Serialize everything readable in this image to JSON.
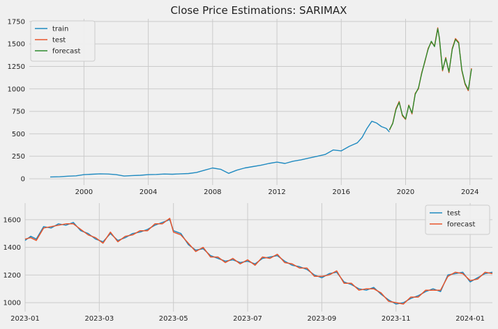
{
  "chart_data": [
    {
      "type": "line",
      "title": "Close Price Estimations: SARIMAX",
      "xlabel": "",
      "ylabel": "",
      "xlim": [
        1996.6,
        2025.4
      ],
      "ylim": [
        -70,
        1780
      ],
      "x_ticks": [
        2000,
        2004,
        2008,
        2012,
        2016,
        2020,
        2024
      ],
      "x_tick_labels": [
        "2000",
        "2004",
        "2008",
        "2012",
        "2016",
        "2020",
        "2024"
      ],
      "y_ticks": [
        0,
        250,
        500,
        750,
        1000,
        1250,
        1500,
        1750
      ],
      "y_tick_labels": [
        "0",
        "250",
        "500",
        "750",
        "1000",
        "1250",
        "1500",
        "1750"
      ],
      "grid": true,
      "legend": "top-left",
      "series": [
        {
          "name": "train",
          "color": "#1f8ac0",
          "x": [
            1997.9,
            1998.5,
            1999.0,
            1999.5,
            2000.0,
            2000.5,
            2001.0,
            2001.5,
            2002.0,
            2002.5,
            2003.0,
            2003.5,
            2004.0,
            2004.5,
            2005.0,
            2005.5,
            2006.0,
            2006.5,
            2007.0,
            2007.5,
            2008.0,
            2008.5,
            2009.0,
            2009.5,
            2010.0,
            2010.5,
            2011.0,
            2011.5,
            2012.0,
            2012.5,
            2013.0,
            2013.5,
            2014.0,
            2014.5,
            2015.0,
            2015.5,
            2016.0,
            2016.5,
            2017.0,
            2017.3,
            2017.6,
            2017.9,
            2018.2,
            2018.5,
            2018.8,
            2019.0
          ],
          "y": [
            20,
            22,
            28,
            32,
            45,
            50,
            55,
            52,
            45,
            30,
            35,
            38,
            45,
            48,
            52,
            50,
            55,
            58,
            70,
            95,
            120,
            105,
            60,
            95,
            120,
            135,
            150,
            170,
            185,
            170,
            195,
            210,
            230,
            250,
            270,
            320,
            310,
            360,
            400,
            460,
            560,
            640,
            620,
            580,
            560,
            520
          ]
        },
        {
          "name": "test",
          "color": "#e8552c",
          "x": [
            2019.0,
            2019.2,
            2019.4,
            2019.6,
            2019.8,
            2020.0,
            2020.2,
            2020.4,
            2020.6,
            2020.8,
            2021.0,
            2021.2,
            2021.4,
            2021.6,
            2021.8,
            2022.0,
            2022.1,
            2022.3,
            2022.5,
            2022.7,
            2022.9,
            2023.1,
            2023.3,
            2023.5,
            2023.7,
            2023.9,
            2024.1
          ],
          "y": [
            540,
            620,
            780,
            860,
            700,
            660,
            820,
            720,
            950,
            1000,
            1180,
            1300,
            1450,
            1520,
            1480,
            1680,
            1560,
            1200,
            1350,
            1180,
            1450,
            1560,
            1520,
            1200,
            1050,
            980,
            1230
          ]
        },
        {
          "name": "forecast",
          "color": "#2e8b2e",
          "x": [
            2019.0,
            2019.2,
            2019.4,
            2019.6,
            2019.8,
            2020.0,
            2020.2,
            2020.4,
            2020.6,
            2020.8,
            2021.0,
            2021.2,
            2021.4,
            2021.6,
            2021.8,
            2022.0,
            2022.1,
            2022.3,
            2022.5,
            2022.7,
            2022.9,
            2023.1,
            2023.3,
            2023.5,
            2023.7,
            2023.9,
            2024.1
          ],
          "y": [
            545,
            615,
            770,
            850,
            710,
            665,
            815,
            730,
            940,
            1010,
            1170,
            1310,
            1440,
            1530,
            1470,
            1670,
            1570,
            1210,
            1340,
            1190,
            1440,
            1550,
            1510,
            1210,
            1060,
            990,
            1220
          ]
        }
      ]
    },
    {
      "type": "line",
      "title": "",
      "xlabel": "",
      "ylabel": "",
      "xlim": [
        0,
        12.6
      ],
      "ylim": [
        935,
        1720
      ],
      "x_ticks": [
        0,
        2,
        4,
        6,
        8,
        10,
        12
      ],
      "x_tick_labels": [
        "2023-01",
        "2023-03",
        "2023-05",
        "2023-07",
        "2023-09",
        "2023-11",
        "2024-01"
      ],
      "y_ticks": [
        1000,
        1200,
        1400,
        1600
      ],
      "y_tick_labels": [
        "1000",
        "1200",
        "1400",
        "1600"
      ],
      "grid": true,
      "legend": "top-right",
      "series": [
        {
          "name": "test",
          "color": "#1f8ac0",
          "x": [
            0.0,
            0.15,
            0.3,
            0.5,
            0.7,
            0.9,
            1.1,
            1.3,
            1.5,
            1.7,
            1.9,
            2.1,
            2.3,
            2.5,
            2.7,
            2.9,
            3.1,
            3.3,
            3.5,
            3.7,
            3.9,
            4.0,
            4.2,
            4.4,
            4.6,
            4.8,
            5.0,
            5.2,
            5.4,
            5.6,
            5.8,
            6.0,
            6.2,
            6.4,
            6.6,
            6.8,
            7.0,
            7.2,
            7.4,
            7.6,
            7.8,
            8.0,
            8.2,
            8.4,
            8.6,
            8.8,
            9.0,
            9.2,
            9.4,
            9.6,
            9.8,
            10.0,
            10.2,
            10.4,
            10.6,
            10.8,
            11.0,
            11.2,
            11.4,
            11.6,
            11.8,
            12.0,
            12.2,
            12.4,
            12.6
          ],
          "y": [
            1450,
            1480,
            1460,
            1550,
            1540,
            1570,
            1560,
            1580,
            1520,
            1500,
            1460,
            1440,
            1500,
            1450,
            1470,
            1500,
            1510,
            1530,
            1560,
            1580,
            1600,
            1520,
            1500,
            1420,
            1380,
            1390,
            1340,
            1320,
            1300,
            1310,
            1290,
            1300,
            1280,
            1320,
            1330,
            1340,
            1300,
            1270,
            1260,
            1240,
            1200,
            1180,
            1210,
            1220,
            1150,
            1130,
            1100,
            1090,
            1110,
            1060,
            1020,
            990,
            1000,
            1030,
            1050,
            1080,
            1100,
            1080,
            1200,
            1210,
            1220,
            1150,
            1180,
            1210,
            1220
          ]
        },
        {
          "name": "forecast",
          "color": "#e8552c",
          "x": [
            0.0,
            0.15,
            0.3,
            0.5,
            0.7,
            0.9,
            1.1,
            1.3,
            1.5,
            1.7,
            1.9,
            2.1,
            2.3,
            2.5,
            2.7,
            2.9,
            3.1,
            3.3,
            3.5,
            3.7,
            3.9,
            4.0,
            4.2,
            4.4,
            4.6,
            4.8,
            5.0,
            5.2,
            5.4,
            5.6,
            5.8,
            6.0,
            6.2,
            6.4,
            6.6,
            6.8,
            7.0,
            7.2,
            7.4,
            7.6,
            7.8,
            8.0,
            8.2,
            8.4,
            8.6,
            8.8,
            9.0,
            9.2,
            9.4,
            9.6,
            9.8,
            10.0,
            10.2,
            10.4,
            10.6,
            10.8,
            11.0,
            11.2,
            11.4,
            11.6,
            11.8,
            12.0,
            12.2,
            12.4,
            12.6
          ],
          "y": [
            1460,
            1470,
            1450,
            1540,
            1550,
            1560,
            1570,
            1570,
            1530,
            1490,
            1470,
            1430,
            1510,
            1440,
            1480,
            1490,
            1520,
            1520,
            1570,
            1570,
            1610,
            1510,
            1490,
            1430,
            1370,
            1400,
            1330,
            1330,
            1290,
            1320,
            1280,
            1310,
            1270,
            1330,
            1320,
            1350,
            1290,
            1280,
            1250,
            1250,
            1190,
            1190,
            1200,
            1230,
            1140,
            1140,
            1090,
            1100,
            1100,
            1070,
            1010,
            1000,
            990,
            1040,
            1040,
            1090,
            1090,
            1090,
            1190,
            1220,
            1210,
            1160,
            1170,
            1220,
            1210
          ]
        }
      ]
    }
  ]
}
